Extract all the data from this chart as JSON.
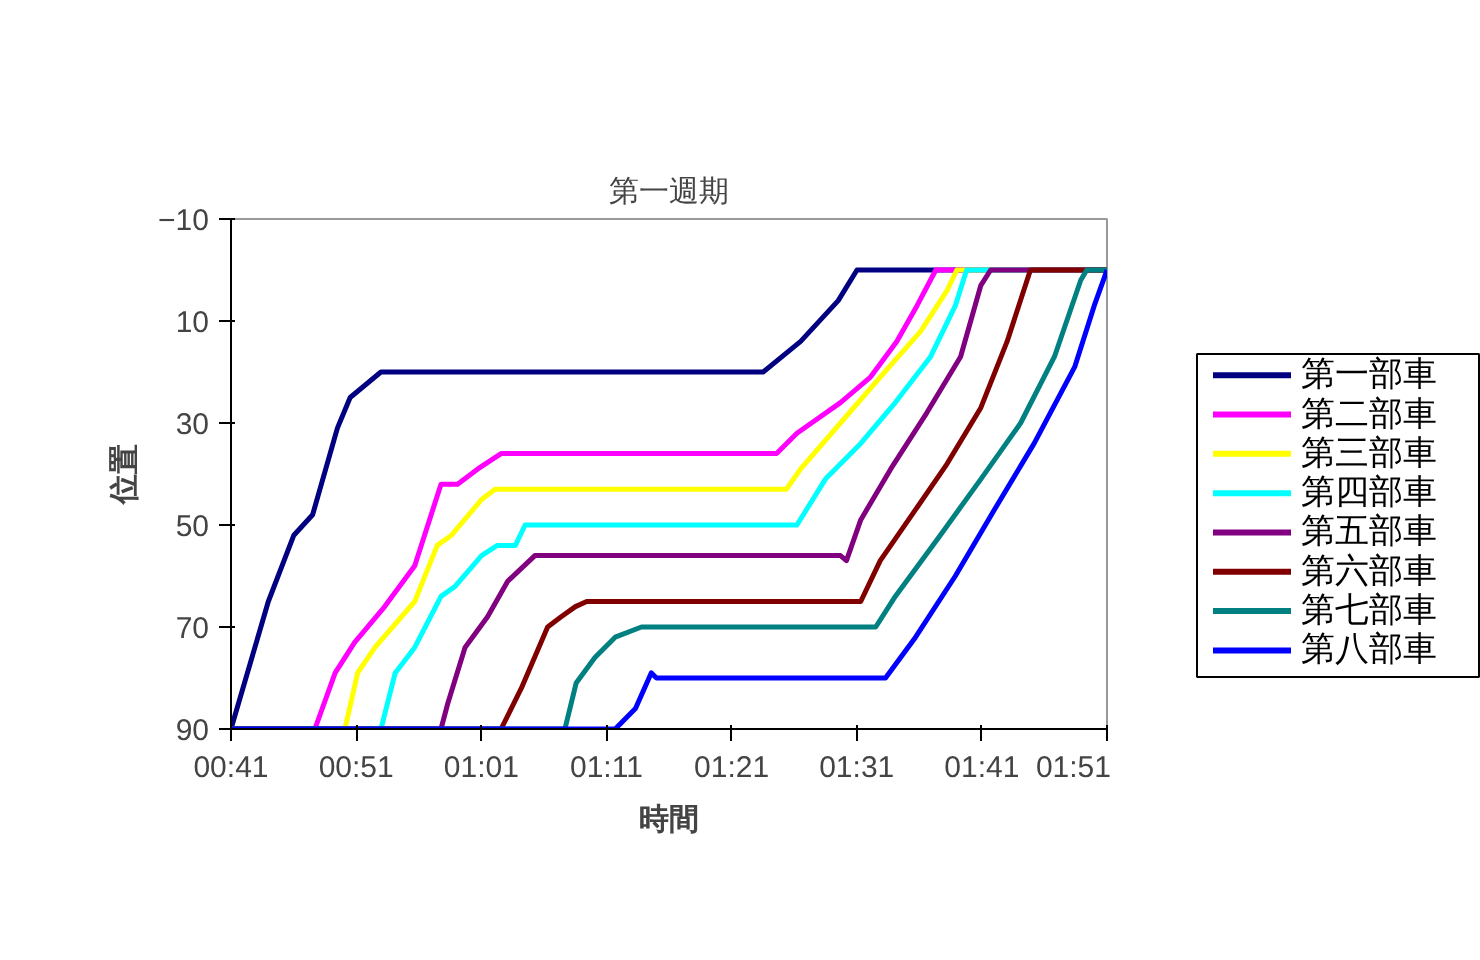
{
  "chart_data": {
    "type": "line",
    "title": "第一週期",
    "xlabel": "時間",
    "ylabel": "位置",
    "xlim": [
      0.6833,
      1.85
    ],
    "ylim": [
      90,
      -10
    ],
    "xticks": [
      {
        "value": 0.6833,
        "label": "00:41"
      },
      {
        "value": 0.85,
        "label": "00:51"
      },
      {
        "value": 1.0167,
        "label": "01:01"
      },
      {
        "value": 1.1833,
        "label": "01:11"
      },
      {
        "value": 1.35,
        "label": "01:21"
      },
      {
        "value": 1.5167,
        "label": "01:31"
      },
      {
        "value": 1.6833,
        "label": "01:41"
      },
      {
        "value": 1.85,
        "label": "01:51"
      }
    ],
    "yticks": [
      -10,
      10,
      30,
      50,
      70,
      90
    ],
    "grid": false,
    "legend": "right",
    "marker": "none",
    "line_style": "solid",
    "series": [
      {
        "name": "第一部車",
        "color": "#000080",
        "x": [
          0.6833,
          0.733,
          0.767,
          0.792,
          0.825,
          0.842,
          0.883,
          1.392,
          1.442,
          1.492,
          1.517,
          1.85
        ],
        "values": [
          90,
          65,
          52,
          48,
          31,
          25,
          20,
          20,
          14,
          6,
          0,
          0
        ]
      },
      {
        "name": "第二部車",
        "color": "#ff00ff",
        "x": [
          0.6833,
          0.795,
          0.822,
          0.848,
          0.888,
          0.928,
          0.963,
          0.985,
          1.012,
          1.043,
          1.41,
          1.437,
          1.495,
          1.535,
          1.57,
          1.597,
          1.622,
          1.85
        ],
        "values": [
          90,
          90,
          79,
          73,
          66,
          58,
          42,
          42,
          39,
          36,
          36,
          32,
          26,
          21,
          14,
          7,
          0,
          0
        ]
      },
      {
        "name": "第三部車",
        "color": "#ffff00",
        "x": [
          0.6833,
          0.835,
          0.852,
          0.875,
          0.928,
          0.958,
          0.977,
          1.017,
          1.035,
          1.062,
          1.423,
          1.442,
          1.495,
          1.548,
          1.602,
          1.637,
          1.65,
          1.85
        ],
        "values": [
          90,
          90,
          79,
          74,
          65,
          54,
          52,
          45,
          43,
          43,
          43,
          39,
          30,
          21,
          12,
          4,
          0,
          0
        ]
      },
      {
        "name": "第四部車",
        "color": "#00ffff",
        "x": [
          0.6833,
          0.883,
          0.902,
          0.928,
          0.963,
          0.982,
          1.017,
          1.038,
          1.062,
          1.075,
          1.437,
          1.475,
          1.522,
          1.568,
          1.615,
          1.648,
          1.663,
          1.85
        ],
        "values": [
          90,
          90,
          79,
          74,
          64,
          62,
          56,
          54,
          54,
          50,
          50,
          41,
          34,
          26,
          17,
          7,
          0,
          0
        ]
      },
      {
        "name": "第五部車",
        "color": "#800080",
        "x": [
          0.6833,
          0.963,
          0.972,
          0.995,
          1.025,
          1.052,
          1.088,
          1.097,
          1.495,
          1.503,
          1.522,
          1.562,
          1.61,
          1.655,
          1.682,
          1.695,
          1.85
        ],
        "values": [
          90,
          90,
          85,
          74,
          68,
          61,
          56,
          56,
          56,
          57,
          49,
          39,
          28,
          17,
          3,
          0,
          0
        ]
      },
      {
        "name": "第六部車",
        "color": "#800000",
        "x": [
          0.6833,
          1.043,
          1.07,
          1.105,
          1.123,
          1.142,
          1.157,
          1.522,
          1.548,
          1.595,
          1.637,
          1.682,
          1.717,
          1.748,
          1.85
        ],
        "values": [
          90,
          90,
          82,
          70,
          68,
          66,
          65,
          65,
          57,
          47,
          38,
          27,
          14,
          0,
          0
        ]
      },
      {
        "name": "第七部車",
        "color": "#008080",
        "x": [
          0.6833,
          1.128,
          1.143,
          1.168,
          1.195,
          1.23,
          1.542,
          1.568,
          1.628,
          1.682,
          1.735,
          1.78,
          1.815,
          1.823,
          1.85
        ],
        "values": [
          90,
          90,
          81,
          76,
          72,
          70,
          70,
          64,
          52,
          41,
          30,
          17,
          2,
          0,
          0
        ]
      },
      {
        "name": "第八部車",
        "color": "#0000ff",
        "x": [
          0.6833,
          1.195,
          1.222,
          1.243,
          1.25,
          1.555,
          1.595,
          1.648,
          1.7,
          1.753,
          1.807,
          1.833,
          1.85
        ],
        "values": [
          90,
          90,
          86,
          79,
          80,
          80,
          72,
          60,
          47,
          34,
          19,
          7,
          0
        ]
      }
    ]
  }
}
